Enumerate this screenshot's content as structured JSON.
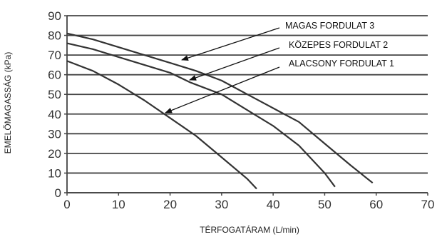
{
  "chart_data": {
    "type": "line",
    "xlabel": "TÉRFOGATÁRAM (L/min)",
    "ylabel": "EMELŐMAGASSÁG (kPa)",
    "xlim": [
      0,
      70
    ],
    "ylim": [
      0,
      90
    ],
    "x_ticks": [
      0,
      10,
      20,
      30,
      40,
      50,
      60,
      70
    ],
    "y_ticks": [
      0,
      10,
      20,
      30,
      40,
      50,
      60,
      70,
      80,
      90
    ],
    "grid": "horizontal",
    "series": [
      {
        "name": "MAGAS FORDULAT 3",
        "color": "#333333",
        "points": [
          [
            0,
            81
          ],
          [
            5,
            78
          ],
          [
            10,
            74
          ],
          [
            15,
            70
          ],
          [
            20,
            66
          ],
          [
            25,
            62
          ],
          [
            30,
            57
          ],
          [
            35,
            50
          ],
          [
            40,
            43
          ],
          [
            45,
            36
          ],
          [
            50,
            25
          ],
          [
            55,
            14
          ],
          [
            59.3,
            5
          ]
        ]
      },
      {
        "name": "KÖZEPES FORDULAT 2",
        "color": "#333333",
        "points": [
          [
            0,
            76
          ],
          [
            5,
            73
          ],
          [
            10,
            69
          ],
          [
            15,
            65
          ],
          [
            20,
            61
          ],
          [
            24,
            56
          ],
          [
            30,
            50
          ],
          [
            35,
            42
          ],
          [
            40,
            34
          ],
          [
            45,
            24
          ],
          [
            50,
            10
          ],
          [
            52,
            3
          ]
        ]
      },
      {
        "name": "ALACSONY FORDULAT 1",
        "color": "#333333",
        "points": [
          [
            0,
            67
          ],
          [
            5,
            62
          ],
          [
            10,
            55
          ],
          [
            15,
            47
          ],
          [
            20,
            38
          ],
          [
            25,
            29
          ],
          [
            30,
            18
          ],
          [
            35,
            7
          ],
          [
            36.8,
            2
          ]
        ]
      }
    ]
  }
}
